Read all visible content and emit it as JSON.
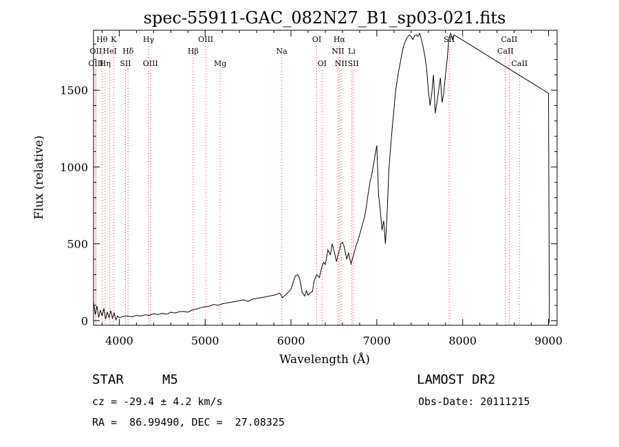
{
  "chart_data": {
    "type": "line",
    "title": "spec-55911-GAC_082N27_B1_sp03-021.fits",
    "xlabel": "Wavelength (Å)",
    "ylabel": "Flux (relative)",
    "xlim": [
      3700,
      9100
    ],
    "ylim": [
      -30,
      1890
    ],
    "x_ticks": [
      4000,
      5000,
      6000,
      7000,
      8000,
      9000
    ],
    "y_ticks": [
      0,
      500,
      1000,
      1500
    ],
    "grid": false,
    "series": [
      {
        "x": [
          3700,
          3720,
          3740,
          3760,
          3780,
          3800,
          3820,
          3840,
          3860,
          3880,
          3900,
          3920,
          3940,
          3960,
          3980,
          4000,
          4050,
          4100,
          4150,
          4200,
          4250,
          4300,
          4350,
          4400,
          4450,
          4500,
          4550,
          4600,
          4650,
          4700,
          4750,
          4800,
          4850,
          4900,
          4950,
          5000,
          5050,
          5100,
          5150,
          5200,
          5250,
          5300,
          5350,
          5400,
          5450,
          5500,
          5550,
          5600,
          5650,
          5700,
          5750,
          5800,
          5850,
          5870,
          5900,
          5950,
          6000,
          6050,
          6080,
          6100,
          6130,
          6160,
          6180,
          6200,
          6220,
          6250,
          6270,
          6300,
          6330,
          6360,
          6380,
          6400,
          6430,
          6460,
          6480,
          6500,
          6530,
          6550,
          6570,
          6580,
          6600,
          6620,
          6650,
          6670,
          6700,
          6720,
          6740,
          6760,
          6780,
          6800,
          6820,
          6840,
          6860,
          6880,
          6900,
          6920,
          6940,
          6960,
          6980,
          7000,
          7020,
          7040,
          7060,
          7080,
          7100,
          7120,
          7140,
          7160,
          7180,
          7200,
          7220,
          7250,
          7280,
          7300,
          7320,
          7350,
          7380,
          7400,
          7420,
          7440,
          7460,
          7480,
          7500,
          7520,
          7540,
          7560,
          7580,
          7600,
          7620,
          7640,
          7660,
          7680,
          7700,
          7720,
          7740,
          7760,
          7780,
          7800,
          7820,
          7840,
          7860,
          7880,
          7900,
          9000,
          9010
        ],
        "y": [
          120,
          40,
          95,
          20,
          70,
          30,
          80,
          10,
          55,
          20,
          65,
          15,
          50,
          5,
          30,
          20,
          28,
          30,
          25,
          35,
          30,
          38,
          35,
          45,
          40,
          48,
          42,
          55,
          50,
          58,
          60,
          55,
          70,
          75,
          85,
          90,
          95,
          105,
          100,
          110,
          115,
          120,
          125,
          130,
          135,
          125,
          140,
          145,
          150,
          155,
          160,
          165,
          175,
          180,
          150,
          175,
          205,
          290,
          300,
          275,
          185,
          160,
          195,
          165,
          180,
          190,
          260,
          300,
          280,
          350,
          380,
          365,
          460,
          430,
          500,
          460,
          385,
          430,
          470,
          500,
          510,
          480,
          400,
          440,
          370,
          410,
          450,
          490,
          520,
          560,
          600,
          640,
          680,
          750,
          830,
          900,
          950,
          1010,
          1080,
          1140,
          820,
          720,
          590,
          650,
          500,
          700,
          980,
          1130,
          1260,
          1380,
          1500,
          1610,
          1700,
          1760,
          1800,
          1840,
          1860,
          1850,
          1830,
          1855,
          1860,
          1850,
          1870,
          1830,
          1780,
          1720,
          1640,
          1500,
          1400,
          1480,
          1600,
          1350,
          1420,
          1500,
          1580,
          1420,
          1480,
          1600,
          1700,
          1840,
          1870,
          1830,
          1860,
          1480,
          -15
        ]
      }
    ],
    "spectral_lines": [
      {
        "label": "Hθ",
        "wavelength": 3798,
        "row": 1
      },
      {
        "label": "OII",
        "wavelength": 3727,
        "row": 2
      },
      {
        "label": "OIII",
        "wavelength": 3727,
        "row": 3
      },
      {
        "label": "HeI",
        "wavelength": 3889,
        "row": 2
      },
      {
        "label": "Hη",
        "wavelength": 3835,
        "row": 3
      },
      {
        "label": "K",
        "wavelength": 3934,
        "row": 1
      },
      {
        "label": "Hδ",
        "wavelength": 4102,
        "row": 2
      },
      {
        "label": "SII",
        "wavelength": 4072,
        "row": 3
      },
      {
        "label": "Hγ",
        "wavelength": 4341,
        "row": 1
      },
      {
        "label": "OIII",
        "wavelength": 4363,
        "row": 3
      },
      {
        "label": "OIII",
        "wavelength": 5007,
        "row": 1
      },
      {
        "label": "Hβ",
        "wavelength": 4861,
        "row": 2
      },
      {
        "label": "Mg",
        "wavelength": 5175,
        "row": 3
      },
      {
        "label": "Na",
        "wavelength": 5893,
        "row": 2
      },
      {
        "label": "OI",
        "wavelength": 6300,
        "row": 1
      },
      {
        "label": "OI",
        "wavelength": 6363,
        "row": 3
      },
      {
        "label": "Hα",
        "wavelength": 6563,
        "row": 1
      },
      {
        "label": "NII",
        "wavelength": 6548,
        "row": 2
      },
      {
        "label": "NII",
        "wavelength": 6584,
        "row": 3
      },
      {
        "label": "Li",
        "wavelength": 6708,
        "row": 2
      },
      {
        "label": "SII",
        "wavelength": 6725,
        "row": 3
      },
      {
        "label": "SII",
        "wavelength": 7843,
        "row": 1
      },
      {
        "label": "CaII",
        "wavelength": 8498,
        "row": 2
      },
      {
        "label": "CaII",
        "wavelength": 8542,
        "row": 1
      },
      {
        "label": "CaII",
        "wavelength": 8662,
        "row": 3
      }
    ]
  },
  "info": {
    "object_class": "STAR",
    "subclass": "M5",
    "survey": "LAMOST DR2",
    "redshift": "cz = -29.4 ± 4.2 km/s",
    "obs_date": "Obs-Date: 20111215",
    "coords": "RA =  86.99490, DEC =  27.08325"
  }
}
